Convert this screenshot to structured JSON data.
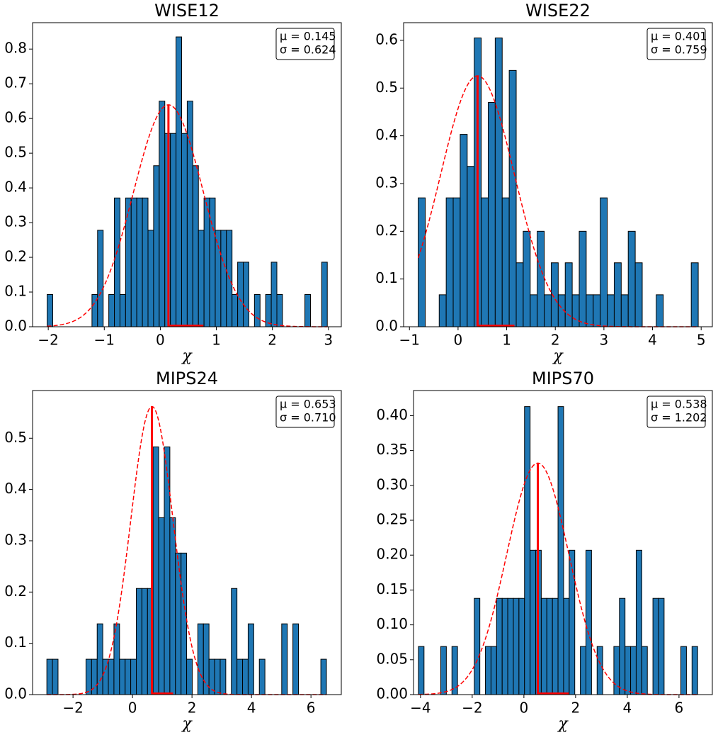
{
  "chart_data": [
    {
      "type": "histogram",
      "title": "WISE12",
      "xlabel": "χ",
      "color": "#1f77b4",
      "fit_color": "#ff0000",
      "legend": "upper right",
      "bins": [
        -2.02,
        -1.92,
        -1.82,
        -1.72,
        -1.62,
        -1.52,
        -1.42,
        -1.32,
        -1.22,
        -1.12,
        -1.02,
        -0.92,
        -0.82,
        -0.72,
        -0.62,
        -0.52,
        -0.42,
        -0.32,
        -0.22,
        -0.12,
        -0.02,
        0.08,
        0.18,
        0.28,
        0.38,
        0.48,
        0.58,
        0.68,
        0.78,
        0.88,
        0.98,
        1.08,
        1.18,
        1.28,
        1.38,
        1.48,
        1.58,
        1.68,
        1.78,
        1.88,
        1.98,
        2.08,
        2.18,
        2.28,
        2.38,
        2.48,
        2.58,
        2.68,
        2.78,
        2.88,
        2.98
      ],
      "values": [
        0.093,
        0,
        0,
        0,
        0,
        0,
        0,
        0,
        0.093,
        0.278,
        0,
        0.093,
        0.371,
        0.093,
        0.371,
        0.371,
        0.371,
        0.371,
        0.278,
        0.464,
        0.65,
        0.557,
        0.557,
        0.835,
        0.557,
        0.65,
        0.464,
        0.278,
        0.371,
        0.371,
        0.278,
        0.278,
        0.278,
        0.093,
        0.186,
        0.186,
        0,
        0.093,
        0,
        0.093,
        0.186,
        0.093,
        0,
        0,
        0,
        0,
        0.093,
        0,
        0,
        0.186
      ],
      "xlim": [
        -2.28,
        3.23
      ],
      "ylim": [
        0,
        0.876
      ],
      "xticks": [
        {
          "value": -2,
          "label": "−2"
        },
        {
          "value": -1,
          "label": "−1"
        },
        0,
        1,
        2,
        3
      ],
      "yticks": [
        {
          "value": 0,
          "label": "0.0"
        },
        0.1,
        0.2,
        0.3,
        0.4,
        0.5,
        0.6,
        0.7,
        0.8
      ],
      "mu": {
        "value": 0.145,
        "label": "μ = 0.145"
      },
      "sigma": {
        "value": 0.624,
        "label": "σ = 0.624"
      }
    },
    {
      "type": "histogram",
      "title": "WISE22",
      "xlabel": "χ",
      "color": "#1f77b4",
      "fit_color": "#ff0000",
      "legend": "upper right",
      "bins": [
        -0.82,
        -0.676,
        -0.532,
        -0.388,
        -0.244,
        -0.1,
        0.044,
        0.188,
        0.332,
        0.476,
        0.62,
        0.764,
        0.908,
        1.052,
        1.196,
        1.34,
        1.484,
        1.628,
        1.772,
        1.916,
        2.06,
        2.204,
        2.348,
        2.492,
        2.636,
        2.78,
        2.924,
        3.068,
        3.212,
        3.356,
        3.5,
        3.644,
        3.788,
        3.932,
        4.076,
        4.22,
        4.364,
        4.508,
        4.652,
        4.796,
        4.94
      ],
      "values": [
        0.27,
        0,
        0,
        0.067,
        0.27,
        0.27,
        0.403,
        0.336,
        0.605,
        0.27,
        0.47,
        0.605,
        0.27,
        0.537,
        0.134,
        0.2,
        0.067,
        0.2,
        0.067,
        0.134,
        0.067,
        0.134,
        0.067,
        0.2,
        0.067,
        0.067,
        0.27,
        0.067,
        0.134,
        0.067,
        0.2,
        0.134,
        0,
        0,
        0.067,
        0,
        0,
        0,
        0,
        0.134
      ],
      "xlim": [
        -1.12,
        5.23
      ],
      "ylim": [
        0,
        0.637
      ],
      "xticks": [
        {
          "value": -1,
          "label": "−1"
        },
        0,
        1,
        2,
        3,
        4,
        5
      ],
      "yticks": [
        {
          "value": 0,
          "label": "0.0"
        },
        0.1,
        0.2,
        0.3,
        0.4,
        0.5,
        0.6
      ],
      "mu": {
        "value": 0.401,
        "label": "μ = 0.401"
      },
      "sigma": {
        "value": 0.759,
        "label": "σ = 0.759"
      }
    },
    {
      "type": "histogram",
      "title": "MIPS24",
      "xlabel": "χ",
      "color": "#1f77b4",
      "fit_color": "#ff0000",
      "legend": "upper right",
      "bins": [
        -2.88,
        -2.692,
        -2.504,
        -2.316,
        -2.128,
        -1.94,
        -1.752,
        -1.564,
        -1.376,
        -1.188,
        -1.0,
        -0.812,
        -0.624,
        -0.436,
        -0.248,
        -0.06,
        0.128,
        0.316,
        0.504,
        0.692,
        0.88,
        1.068,
        1.256,
        1.444,
        1.632,
        1.82,
        2.008,
        2.196,
        2.384,
        2.572,
        2.76,
        2.948,
        3.136,
        3.324,
        3.512,
        3.7,
        3.888,
        4.076,
        4.264,
        4.452,
        4.64,
        4.828,
        5.016,
        5.204,
        5.392,
        5.58,
        5.768,
        5.956,
        6.144,
        6.332,
        6.52
      ],
      "values": [
        0.069,
        0.069,
        0,
        0,
        0,
        0,
        0,
        0.069,
        0.069,
        0.138,
        0.069,
        0.069,
        0.138,
        0.069,
        0.069,
        0.069,
        0.207,
        0.207,
        0.207,
        0.483,
        0.345,
        0.483,
        0.345,
        0.276,
        0.276,
        0.069,
        0,
        0.138,
        0.138,
        0.069,
        0.069,
        0.069,
        0,
        0.207,
        0.069,
        0.069,
        0.138,
        0,
        0.069,
        0,
        0,
        0,
        0.138,
        0,
        0.138,
        0,
        0,
        0,
        0,
        0.069
      ],
      "xlim": [
        -3.36,
        7.02
      ],
      "ylim": [
        0,
        0.593
      ],
      "xticks": [
        {
          "value": -2,
          "label": "−2"
        },
        0,
        2,
        4,
        6
      ],
      "yticks": [
        {
          "value": 0,
          "label": "0.0"
        },
        0.1,
        0.2,
        0.3,
        0.4,
        0.5
      ],
      "mu": {
        "value": 0.653,
        "label": "μ = 0.653"
      },
      "sigma": {
        "value": 0.71,
        "label": "σ = 0.710"
      }
    },
    {
      "type": "histogram",
      "title": "MIPS70",
      "xlabel": "χ",
      "color": "#1f77b4",
      "fit_color": "#ff0000",
      "legend": "upper right",
      "bins": [
        -4.08,
        -3.864,
        -3.648,
        -3.432,
        -3.216,
        -3.0,
        -2.784,
        -2.568,
        -2.352,
        -2.136,
        -1.92,
        -1.704,
        -1.488,
        -1.272,
        -1.056,
        -0.84,
        -0.624,
        -0.408,
        -0.192,
        0.024,
        0.24,
        0.456,
        0.672,
        0.888,
        1.104,
        1.32,
        1.536,
        1.752,
        1.968,
        2.184,
        2.4,
        2.616,
        2.832,
        3.048,
        3.264,
        3.48,
        3.696,
        3.912,
        4.128,
        4.344,
        4.56,
        4.776,
        4.992,
        5.208,
        5.424,
        5.64,
        5.856,
        6.072,
        6.288,
        6.504,
        6.72
      ],
      "values": [
        0.069,
        0,
        0,
        0,
        0.069,
        0,
        0.069,
        0,
        0,
        0,
        0.138,
        0,
        0.069,
        0.069,
        0.138,
        0.138,
        0.138,
        0.138,
        0.138,
        0.413,
        0.207,
        0.207,
        0.138,
        0.138,
        0.138,
        0.413,
        0.138,
        0.207,
        0,
        0.069,
        0.207,
        0,
        0.069,
        0,
        0,
        0.069,
        0.138,
        0.069,
        0.069,
        0.207,
        0.069,
        0,
        0.138,
        0.138,
        0,
        0,
        0,
        0.069,
        0,
        0.069
      ],
      "xlim": [
        -4.27,
        7.29
      ],
      "ylim": [
        0,
        0.436
      ],
      "xticks": [
        {
          "value": -4,
          "label": "−4"
        },
        {
          "value": -2,
          "label": "−2"
        },
        0,
        2,
        4,
        6
      ],
      "yticks": [
        {
          "value": 0,
          "label": "0.00"
        },
        0.05,
        {
          "value": 0.1,
          "label": "0.10"
        },
        0.15,
        {
          "value": 0.2,
          "label": "0.20"
        },
        0.25,
        {
          "value": 0.3,
          "label": "0.30"
        },
        0.35,
        {
          "value": 0.4,
          "label": "0.40"
        }
      ],
      "mu": {
        "value": 0.538,
        "label": "μ = 0.538"
      },
      "sigma": {
        "value": 1.202,
        "label": "σ = 1.202"
      }
    }
  ]
}
